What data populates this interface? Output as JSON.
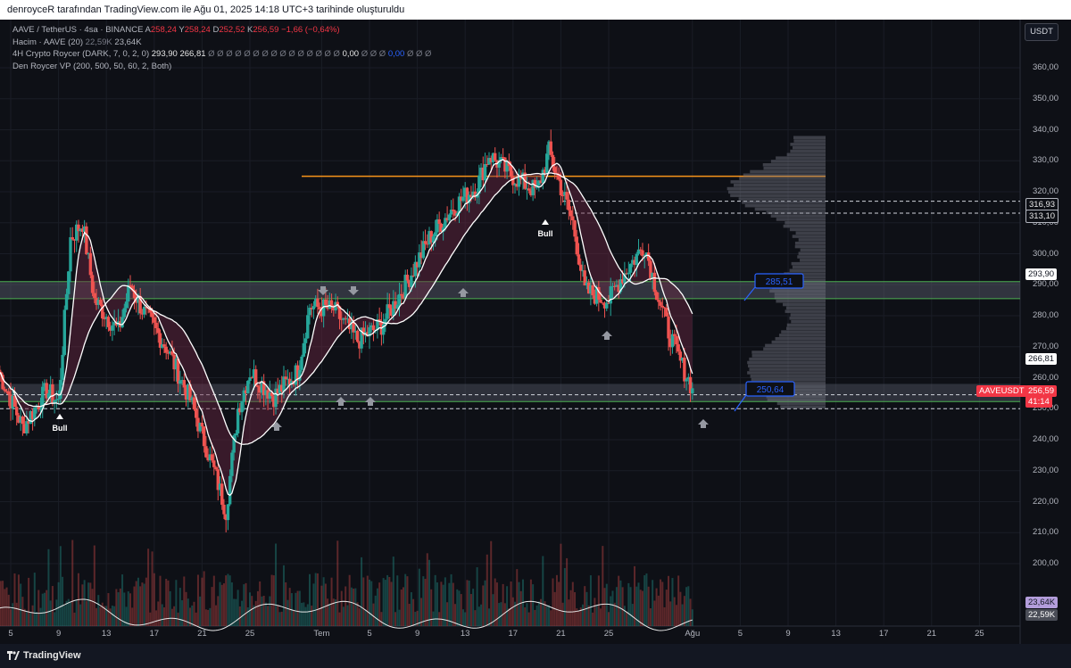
{
  "caption": "denroyceR tarafından TradingView.com ile Ağu 01, 2025 14:18 UTC+3 tarihinde oluşturuldu",
  "legend": {
    "symbol": "AAVE / TetherUS · 4sa · BINANCE",
    "o_key": "A",
    "o_val": "258,24",
    "h_key": "Y",
    "h_val": "258,24",
    "l_key": "D",
    "l_val": "252,52",
    "c_key": "K",
    "c_val": "256,59",
    "change": "−1,66 (−0,64%)",
    "volume_label": "Hacim · AAVE (20)",
    "volume_v1": "22,59K",
    "volume_v2": "23,64K",
    "indicator1_label": "4H Crypto Roycer (DARK, 7, 0, 2, 0)",
    "indicator1_v1": "293,90",
    "indicator1_v2": "266,81",
    "indicator1_zeros_a": "Ø Ø Ø Ø Ø Ø Ø Ø Ø Ø Ø Ø Ø Ø Ø",
    "indicator1_v3": "0,00",
    "indicator1_zeros_b": "Ø Ø Ø",
    "indicator1_v4": "0,00",
    "indicator1_zeros_c": "Ø Ø Ø",
    "indicator2_label": "Den Roycer VP (200, 500, 50, 60, 2, Both)"
  },
  "currency": "USDT",
  "price_axis": [
    "360,00",
    "350,00",
    "340,00",
    "330,00",
    "320,00",
    "310,00",
    "300,00",
    "290,00",
    "280,00",
    "270,00",
    "260,00",
    "250,00",
    "240,00",
    "230,00",
    "220,00",
    "210,00",
    "200,00"
  ],
  "price_tags": {
    "t1": "316,93",
    "t2": "313,10",
    "t3": "293,90",
    "t4": "266,81",
    "symbol": "AAVEUSDT",
    "last": "256,59",
    "countdown": "41:14",
    "vol1": "23,64K",
    "vol2": "22,59K"
  },
  "callouts": {
    "upper": "285,51",
    "lower": "250,64"
  },
  "signals": {
    "bull1": "Bull",
    "bull2": "Bull"
  },
  "time_axis": [
    "5",
    "9",
    "13",
    "17",
    "21",
    "25",
    "Tem",
    "5",
    "9",
    "13",
    "17",
    "21",
    "25",
    "Ağu",
    "5",
    "9",
    "13",
    "17",
    "21",
    "25"
  ],
  "footer": {
    "brand": "TradingView"
  },
  "colors": {
    "up": "#26a69a",
    "down": "#ef5350",
    "background": "#0e1016",
    "horizontal_line": "#f7931a",
    "zone": "#4caf50",
    "cloud": "#6d2942",
    "callout": "#2962ff"
  },
  "chart_data": {
    "type": "candlestick",
    "symbol": "AAVE / TetherUS",
    "interval": "4sa",
    "ylim": [
      195,
      365
    ],
    "key_levels": [
      325,
      316.93,
      313.1,
      291,
      285.5,
      257.5,
      252.5,
      250
    ],
    "waypoints": [
      [
        "Haz 4",
        262
      ],
      [
        "Haz 6",
        244
      ],
      [
        "Haz 8",
        256
      ],
      [
        "Haz 9",
        252
      ],
      [
        "Haz 10",
        305
      ],
      [
        "Haz 11",
        310
      ],
      [
        "Haz 12",
        285
      ],
      [
        "Haz 14",
        275
      ],
      [
        "Haz 15",
        290
      ],
      [
        "Haz 16",
        282
      ],
      [
        "Haz 18",
        270
      ],
      [
        "Haz 20",
        253
      ],
      [
        "Haz 22",
        230
      ],
      [
        "Haz 23",
        217
      ],
      [
        "Haz 24",
        250
      ],
      [
        "Haz 25",
        262
      ],
      [
        "Haz 27",
        254
      ],
      [
        "Haz 29",
        262
      ],
      [
        "Haz 30",
        283
      ],
      [
        "Tem 2",
        282
      ],
      [
        "Tem 4",
        272
      ],
      [
        "Tem 6",
        277
      ],
      [
        "Tem 8",
        290
      ],
      [
        "Tem 10",
        305
      ],
      [
        "Tem 12",
        315
      ],
      [
        "Tem 14",
        322
      ],
      [
        "Tem 15",
        332
      ],
      [
        "Tem 17",
        325
      ],
      [
        "Tem 19",
        320
      ],
      [
        "Tem 20",
        333
      ],
      [
        "Tem 22",
        310
      ],
      [
        "Tem 23",
        288
      ],
      [
        "Tem 25",
        285
      ],
      [
        "Tem 26",
        292
      ],
      [
        "Tem 28",
        303
      ],
      [
        "Tem 29",
        288
      ],
      [
        "Tem 30",
        275
      ],
      [
        "Tem 31",
        265
      ],
      [
        "Ağu 1",
        256.59
      ]
    ],
    "volume_last": [
      "23,64K",
      "22,59K"
    ]
  }
}
